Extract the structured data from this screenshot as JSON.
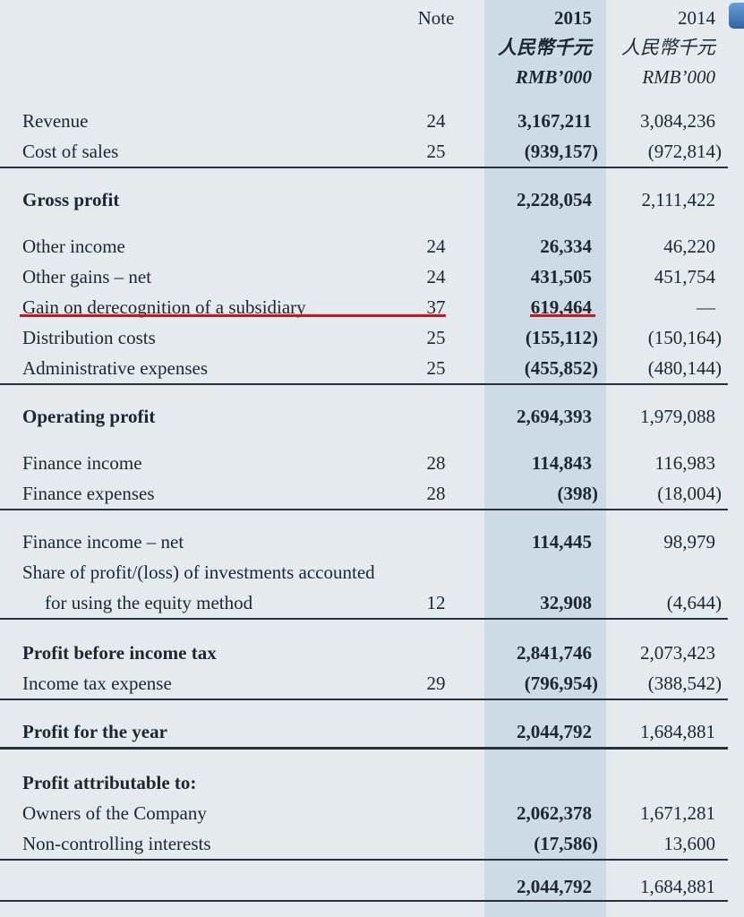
{
  "page": {
    "bg_color": "#e4eaee",
    "band_color": "#ccdbe5",
    "text_color": "#1c2732",
    "rule_color": "#27313d",
    "highlight_color": "#cb1717",
    "tab_icon_color": "#2e65a7"
  },
  "header": {
    "note_label": "Note",
    "col2015": {
      "year": "2015",
      "currency_cn": "人民幣千元",
      "currency_en": "RMB’000"
    },
    "col2014": {
      "year": "2014",
      "currency_cn": "人民幣千元",
      "currency_en": "RMB’000"
    }
  },
  "rows": [
    {
      "label": "Revenue",
      "note": "24",
      "v2015": "3,167,211",
      "v2014": "3,084,236"
    },
    {
      "label": "Cost of sales",
      "note": "25",
      "v2015": "(939,157)",
      "v2014": "(972,814)"
    },
    {
      "label": "Gross profit",
      "v2015": "2,228,054",
      "v2014": "2,111,422",
      "bold": true
    },
    {
      "label": "Other income",
      "note": "24",
      "v2015": "26,334",
      "v2014": "46,220"
    },
    {
      "label": "Other gains – net",
      "note": "24",
      "v2015": "431,505",
      "v2014": "451,754"
    },
    {
      "label": "Gain on derecognition of a subsidiary",
      "note": "37",
      "v2015": "619,464",
      "v2014": "—",
      "highlighted": true
    },
    {
      "label": "Distribution costs",
      "note": "25",
      "v2015": "(155,112)",
      "v2014": "(150,164)"
    },
    {
      "label": "Administrative expenses",
      "note": "25",
      "v2015": "(455,852)",
      "v2014": "(480,144)"
    },
    {
      "label": "Operating profit",
      "v2015": "2,694,393",
      "v2014": "1,979,088",
      "bold": true
    },
    {
      "label": "Finance income",
      "note": "28",
      "v2015": "114,843",
      "v2014": "116,983"
    },
    {
      "label": "Finance expenses",
      "note": "28",
      "v2015": "(398)",
      "v2014": "(18,004)"
    },
    {
      "label": "Finance income – net",
      "v2015": "114,445",
      "v2014": "98,979"
    },
    {
      "label_line1": "Share of profit/(loss) of investments accounted",
      "label_line2": "for using the equity method",
      "note": "12",
      "v2015": "32,908",
      "v2014": "(4,644)"
    },
    {
      "label": "Profit before income tax",
      "v2015": "2,841,746",
      "v2014": "2,073,423",
      "bold": true
    },
    {
      "label": "Income tax expense",
      "note": "29",
      "v2015": "(796,954)",
      "v2014": "(388,542)"
    },
    {
      "label": "Profit for the year",
      "v2015": "2,044,792",
      "v2014": "1,684,881",
      "bold": true
    },
    {
      "label": "Profit attributable to:",
      "bold": true
    },
    {
      "label": "Owners of the Company",
      "v2015": "2,062,378",
      "v2014": "1,671,281"
    },
    {
      "label": "Non-controlling interests",
      "v2015": "(17,586)",
      "v2014": "13,600"
    },
    {
      "label": "",
      "v2015": "2,044,792",
      "v2014": "1,684,881"
    }
  ]
}
